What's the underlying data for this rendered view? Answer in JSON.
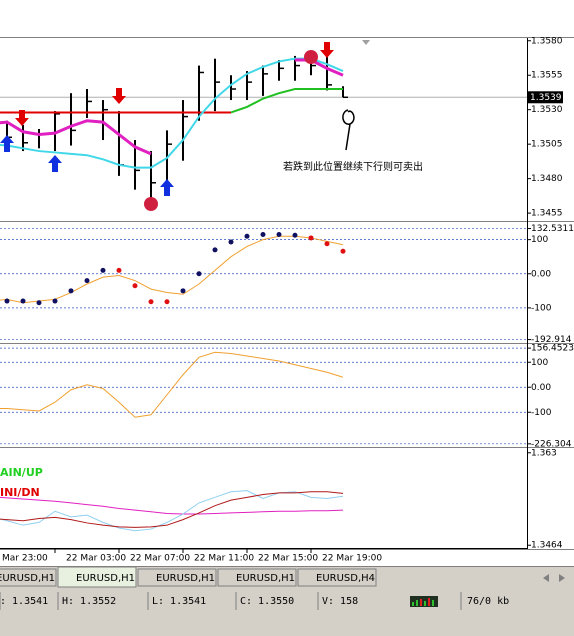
{
  "chart": {
    "categories": [
      "Mar 23:00",
      null,
      null,
      null,
      "22 Mar 03:00",
      null,
      null,
      null,
      "22 Mar 07:00",
      null,
      null,
      null,
      "22 Mar 11:00",
      null,
      null,
      null,
      "22 Mar 15:00",
      null,
      null,
      null,
      "22 Mar 19:00",
      null,
      null
    ],
    "panes": [
      {
        "type": "ohlc",
        "ylim": [
          1.345,
          1.3582
        ],
        "yticks": [
          {
            "value": 1.358,
            "label": "1.3580"
          },
          {
            "value": 1.3555,
            "label": "1.3555"
          },
          {
            "value": 1.353,
            "label": "1.3530"
          },
          {
            "value": 1.3505,
            "label": "1.3505"
          },
          {
            "value": 1.348,
            "label": "1.3480"
          },
          {
            "value": 1.3455,
            "label": "1.3455"
          }
        ],
        "grid": false,
        "price_marker": {
          "value": 1.3539,
          "label": "1.3539"
        },
        "high": [
          1.353,
          1.3522,
          1.3519,
          1.3516,
          1.3529,
          1.3542,
          1.3545,
          1.3537,
          1.3529,
          1.3508,
          1.35,
          1.3515,
          1.3537,
          1.3562,
          1.3567,
          1.3555,
          1.3558,
          1.3562,
          1.3566,
          1.3569,
          1.3569,
          1.3569,
          1.3547
        ],
        "low": [
          1.3518,
          1.3504,
          1.35,
          1.3502,
          1.35,
          1.3504,
          1.3524,
          1.3508,
          1.3482,
          1.3472,
          1.3464,
          1.3472,
          1.3493,
          1.3522,
          1.3529,
          1.3537,
          1.3537,
          1.354,
          1.3551,
          1.3551,
          1.3555,
          1.3544,
          1.3539
        ],
        "close": [
          1.3522,
          1.351,
          1.3506,
          1.3512,
          1.3527,
          1.3515,
          1.3536,
          1.353,
          1.349,
          1.3486,
          1.3477,
          1.3505,
          1.3525,
          1.3557,
          1.355,
          1.3545,
          1.355,
          1.3556,
          1.356,
          1.3562,
          1.3562,
          1.3548,
          1.3539
        ],
        "bar_color": "#000000",
        "series": [
          {
            "color": "#e00000",
            "width": 2,
            "values": [
              1.3528,
              1.3528,
              1.3528,
              1.3528,
              1.3528,
              1.3528,
              1.3528,
              1.3528,
              1.3528,
              1.3528,
              1.3528,
              1.3528,
              1.3528,
              1.3528,
              1.3528,
              1.3528,
              null,
              null,
              null,
              null,
              null,
              null,
              null
            ]
          },
          {
            "color": "#20c020",
            "width": 2,
            "values": [
              null,
              null,
              null,
              null,
              null,
              null,
              null,
              null,
              null,
              null,
              null,
              null,
              null,
              null,
              null,
              1.3528,
              1.3532,
              1.3538,
              1.3542,
              1.3545,
              1.3545,
              1.3545,
              1.3545
            ]
          },
          {
            "color": "#40d8e8",
            "width": 2,
            "values": [
              1.3505,
              1.3504,
              1.3502,
              1.35,
              1.3499,
              1.3498,
              1.3497,
              1.3494,
              1.349,
              1.3488,
              1.3488,
              1.3495,
              1.3508,
              1.3525,
              1.3538,
              1.3548,
              1.3556,
              1.3561,
              1.3565,
              1.3567,
              1.3567,
              1.3563,
              1.3558
            ]
          },
          {
            "color": "#e020c0",
            "width": 3,
            "values": [
              1.352,
              1.3521,
              1.3514,
              1.3512,
              1.3513,
              1.3518,
              1.3522,
              1.3521,
              1.3512,
              1.3503,
              1.3498,
              null,
              null,
              null,
              null,
              null,
              null,
              null,
              null,
              1.3566,
              1.3566,
              1.356,
              1.3555
            ]
          }
        ]
      },
      {
        "type": "line",
        "ylim": [
          -200,
          140
        ],
        "yticks": [
          132.5311,
          100,
          {
            "value": 0,
            "label": "0.00"
          },
          -100,
          -192.914
        ],
        "grid": true,
        "series": [
          {
            "color": "#f0a030",
            "width": 1,
            "values": [
              -80,
              -75,
              -85,
              -80,
              -75,
              -55,
              -30,
              -10,
              -5,
              -20,
              -45,
              -55,
              -60,
              -30,
              10,
              50,
              80,
              100,
              110,
              110,
              105,
              95,
              85
            ]
          },
          {
            "color": "#101060",
            "dots": true,
            "values": [
              null,
              -80,
              -80,
              -85,
              -80,
              -50,
              -20,
              10,
              null,
              null,
              null,
              null,
              -50,
              0,
              70,
              93,
              110,
              115,
              115,
              113,
              null,
              null,
              null
            ]
          },
          {
            "color": "#e01010",
            "dots": true,
            "values": [
              null,
              null,
              null,
              null,
              null,
              null,
              null,
              null,
              10,
              -35,
              -82,
              -82,
              null,
              null,
              null,
              null,
              null,
              null,
              null,
              null,
              105,
              88,
              66
            ]
          }
        ]
      },
      {
        "type": "line",
        "ylim": [
          -235,
          165
        ],
        "yticks": [
          156.4523,
          100,
          {
            "value": 0,
            "label": "0.00"
          },
          -100,
          -226.304
        ],
        "grid": true,
        "series": [
          {
            "color": "#f0a030",
            "width": 1,
            "values": [
              -85,
              -85,
              -90,
              -95,
              -60,
              -10,
              10,
              -5,
              -60,
              -120,
              -110,
              -30,
              50,
              120,
              140,
              135,
              125,
              115,
              105,
              90,
              75,
              60,
              40
            ]
          }
        ]
      },
      {
        "type": "line",
        "ylim": [
          1.3459,
          1.3635
        ],
        "yticks": [
          1.363,
          1.3464
        ],
        "grid": false,
        "labels": [
          {
            "text": "AIN/UP",
            "color": "#20d020"
          },
          {
            "text": "INI/DN",
            "color": "#e00000"
          }
        ],
        "series": [
          {
            "color": "#e020c0",
            "width": 1,
            "values": [
              1.3551,
              1.3549,
              1.3547,
              1.3545,
              1.3543,
              1.354,
              1.3537,
              1.3534,
              1.353,
              1.3527,
              1.3524,
              1.3521,
              1.352,
              1.352,
              1.3521,
              1.3522,
              1.3523,
              1.3524,
              1.3525,
              1.3525,
              1.3526,
              1.3526,
              1.3527
            ]
          },
          {
            "color": "#90d0f0",
            "width": 1,
            "values": [
              1.3515,
              1.3508,
              1.35,
              1.3505,
              1.3525,
              1.3515,
              1.3518,
              1.3505,
              1.3495,
              1.349,
              1.3493,
              1.3505,
              1.352,
              1.354,
              1.355,
              1.356,
              1.3562,
              1.3548,
              1.3558,
              1.356,
              1.355,
              1.3548,
              1.3552
            ]
          },
          {
            "color": "#b01818",
            "width": 1,
            "values": [
              1.3512,
              1.351,
              1.3508,
              1.3512,
              1.3514,
              1.351,
              1.3504,
              1.35,
              1.3497,
              1.3496,
              1.3497,
              1.35,
              1.351,
              1.3522,
              1.3535,
              1.3545,
              1.355,
              1.3555,
              1.3558,
              1.3558,
              1.356,
              1.356,
              1.3557
            ]
          }
        ]
      }
    ],
    "annotation": "若跌到此位置继续下行则可卖出"
  },
  "tabs": {
    "items": [
      "EURUSD,H1",
      "EURUSD,H1",
      "EURUSD,H1",
      "EURUSD,H1",
      "EURUSD,H4"
    ],
    "active": 1
  },
  "status_bar": [
    ": 1.3541",
    "H: 1.3552",
    "L: 1.3541",
    "C: 1.3550",
    "V: 158",
    "76/0 kb"
  ]
}
